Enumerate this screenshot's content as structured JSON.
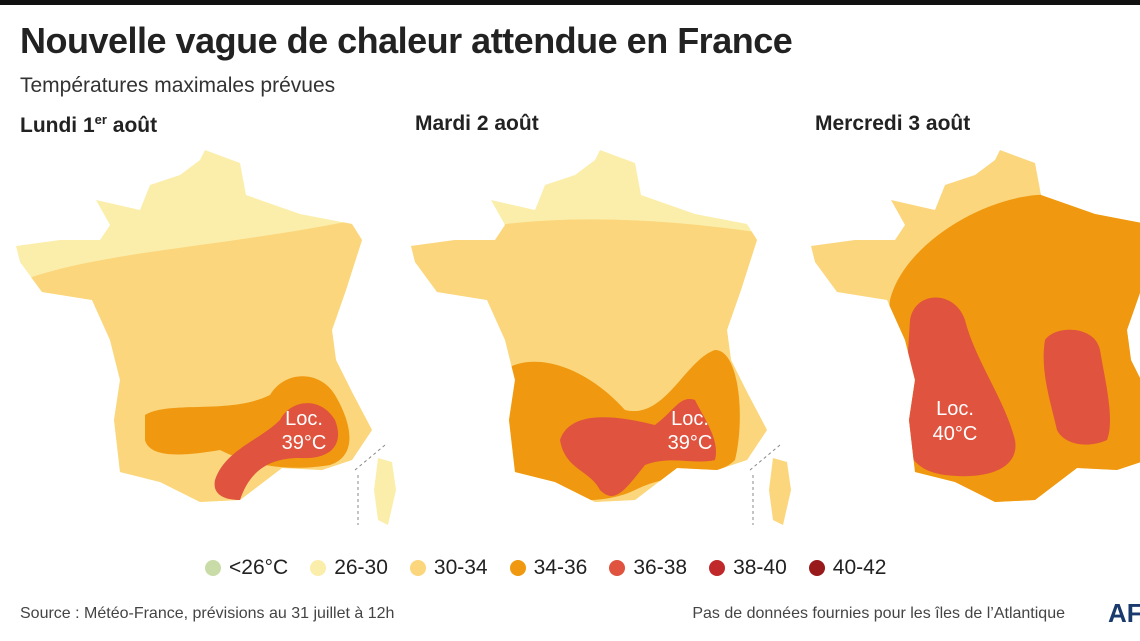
{
  "header": {
    "title": "Nouvelle vague de chaleur attendue en France",
    "subtitle": "Températures maximales prévues"
  },
  "panels": [
    {
      "title": "Lundi 1",
      "title_sup": "er",
      "title_rest": " août",
      "annotation": [
        "Loc.",
        "39°C"
      ]
    },
    {
      "title": "Mardi 2 août",
      "annotation": [
        "Loc.",
        "39°C"
      ]
    },
    {
      "title": "Mercredi 3 août",
      "annotation": [
        "Loc.",
        "40°C"
      ]
    }
  ],
  "legend": [
    {
      "label": "<26°C",
      "color": "#c9dca8"
    },
    {
      "label": "26-30",
      "color": "#fbeeab"
    },
    {
      "label": "30-34",
      "color": "#fbd67c"
    },
    {
      "label": "34-36",
      "color": "#f0980f"
    },
    {
      "label": "36-38",
      "color": "#e0533f"
    },
    {
      "label": "38-40",
      "color": "#c0282a"
    },
    {
      "label": "40-42",
      "color": "#981a1a"
    }
  ],
  "footer": {
    "source": "Source : Météo-France, prévisions au 31 juillet à 12h",
    "note": "Pas de données fournies pour les îles de l’Atlantique",
    "logo": "AFP"
  }
}
